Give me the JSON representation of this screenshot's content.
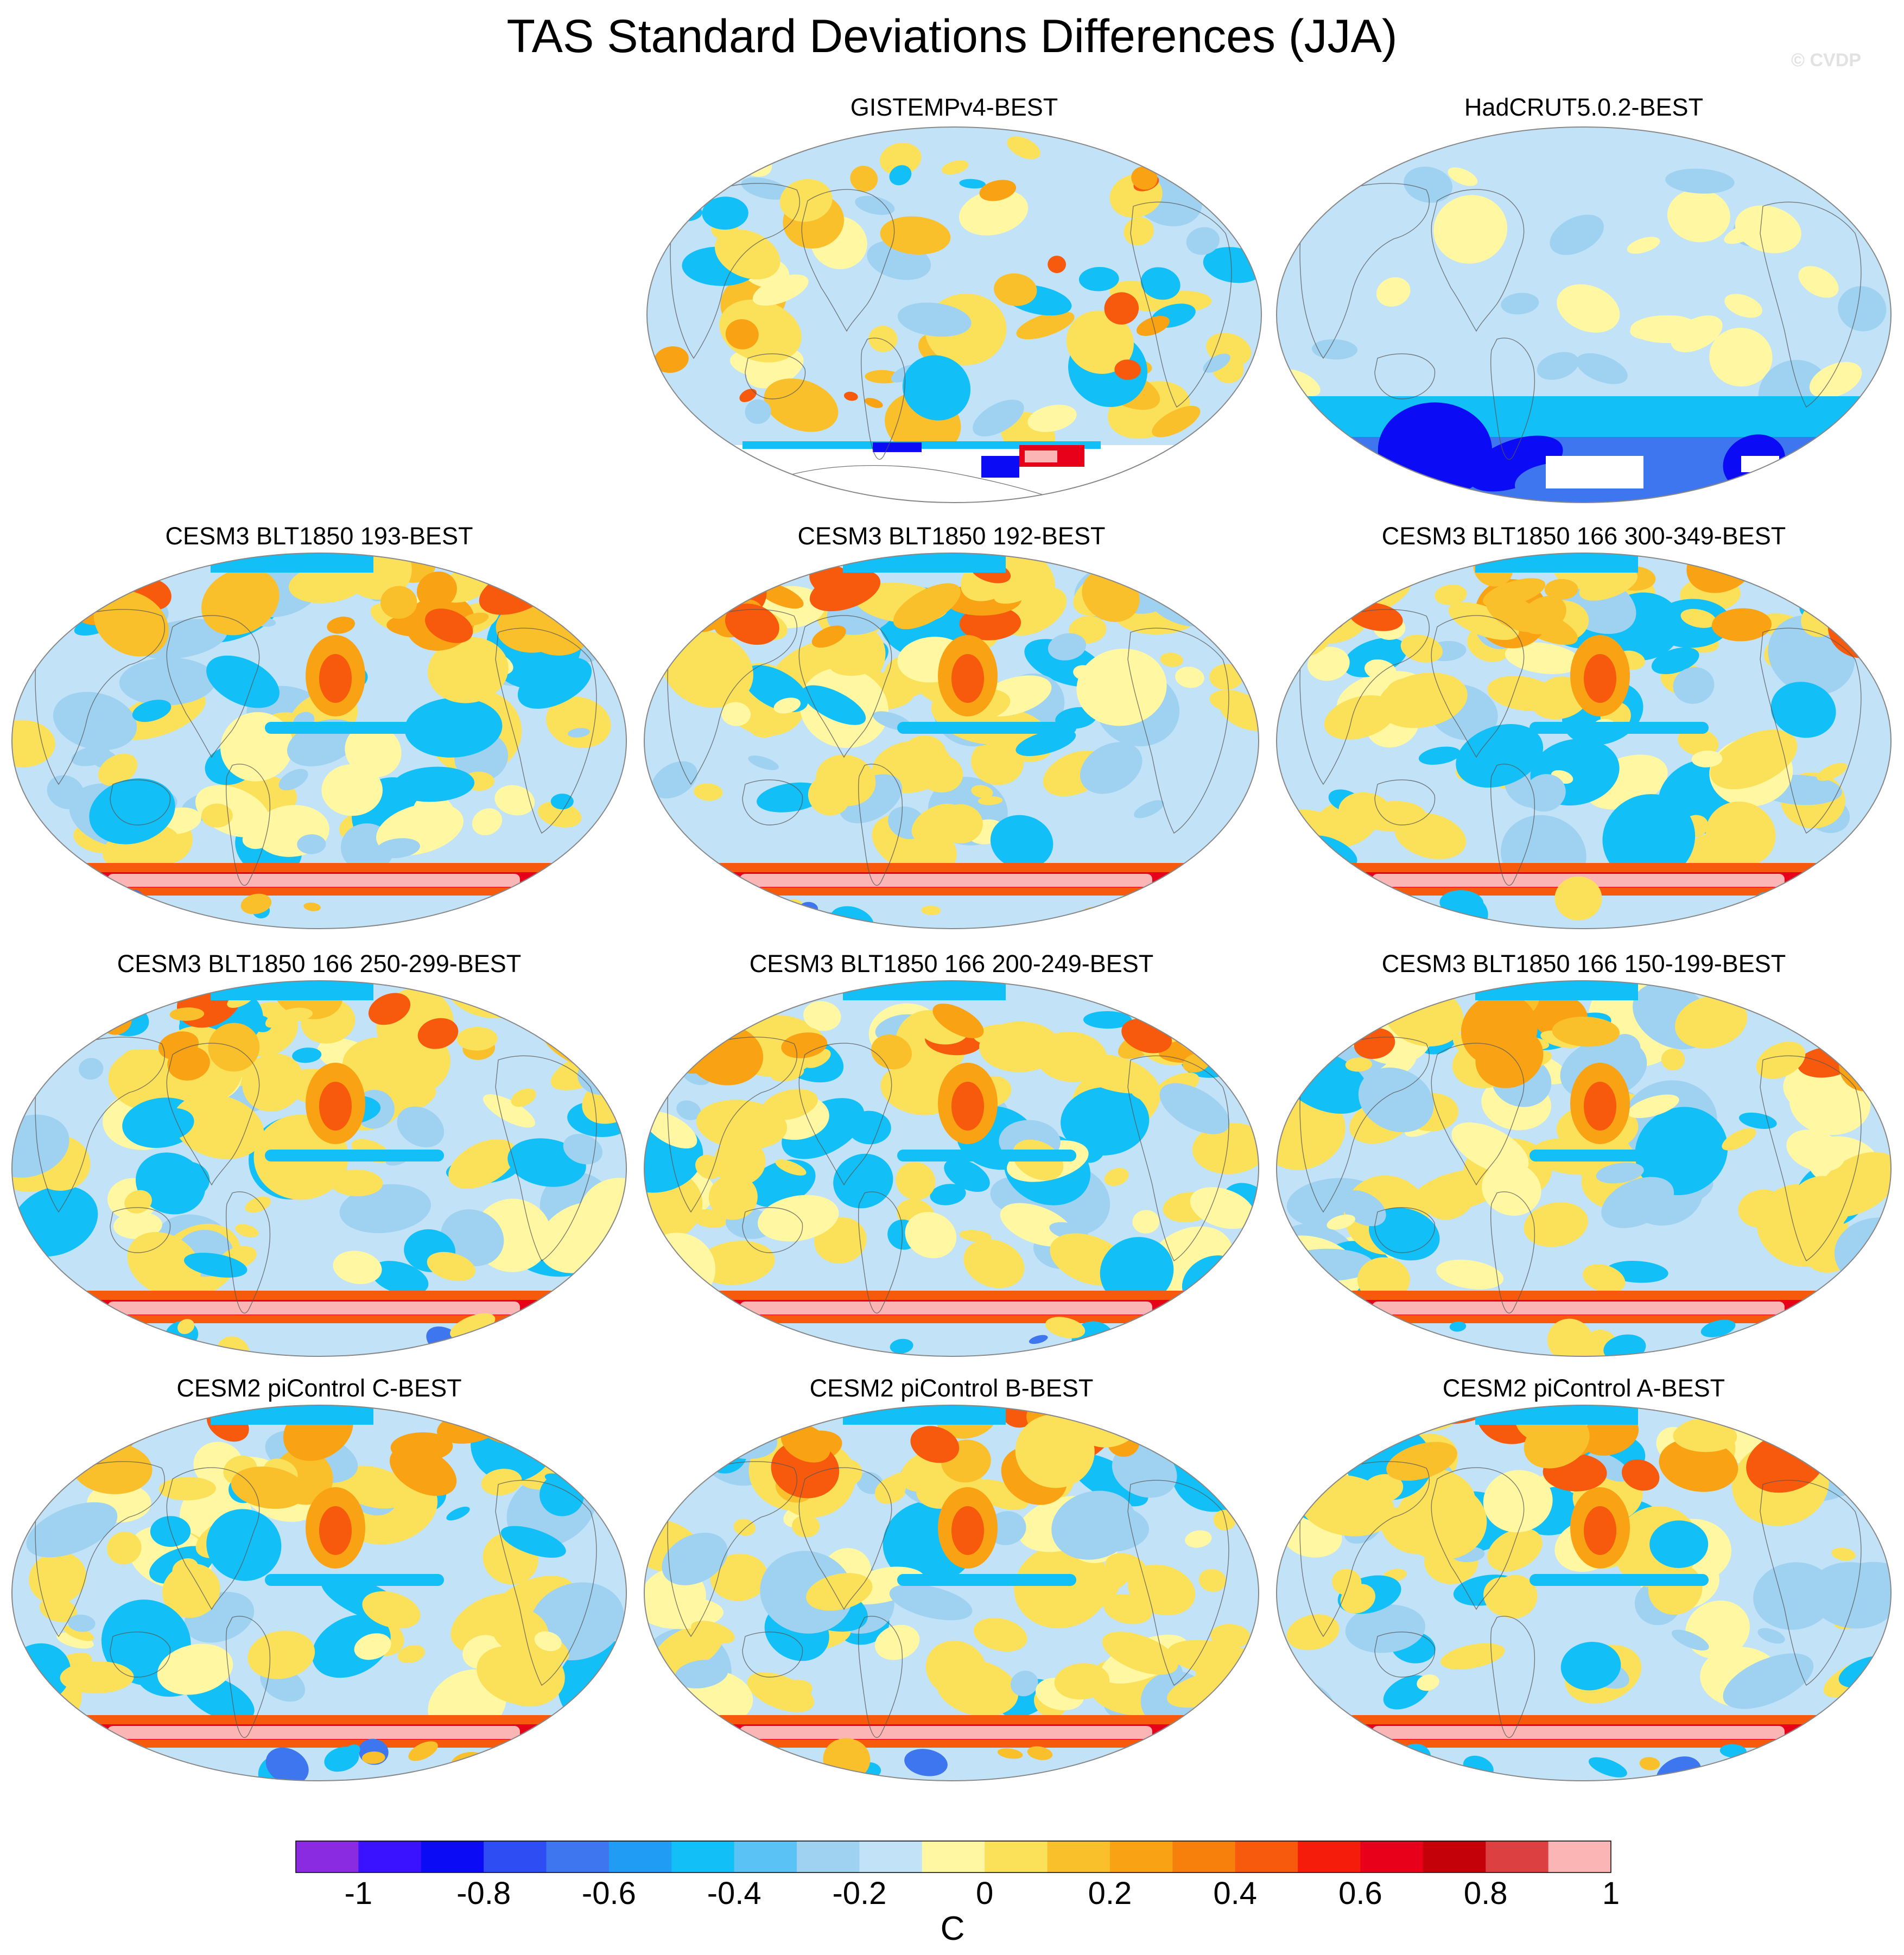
{
  "title": "TAS Standard Deviations Differences (JJA)",
  "watermark": "© CVDP",
  "panels": [
    {
      "title": "GISTEMPv4-BEST",
      "theme": "obs_gistemp"
    },
    {
      "title": "HadCRUT5.0.2-BEST",
      "theme": "obs_hadcrut"
    },
    {
      "title": "CESM3 BLT1850 193-BEST",
      "theme": "model"
    },
    {
      "title": "CESM3 BLT1850 192-BEST",
      "theme": "model"
    },
    {
      "title": "CESM3 BLT1850 166 300-349-BEST",
      "theme": "model"
    },
    {
      "title": "CESM3 BLT1850 166 250-299-BEST",
      "theme": "model"
    },
    {
      "title": "CESM3 BLT1850 166 200-249-BEST",
      "theme": "model"
    },
    {
      "title": "CESM3 BLT1850 166 150-199-BEST",
      "theme": "model"
    },
    {
      "title": "CESM2 piControl C-BEST",
      "theme": "model"
    },
    {
      "title": "CESM2 piControl B-BEST",
      "theme": "model"
    },
    {
      "title": "CESM2 piControl A-BEST",
      "theme": "model"
    }
  ],
  "colorbar": {
    "units": "C",
    "tick_labels": [
      "-1",
      "-0.8",
      "-0.6",
      "-0.4",
      "-0.2",
      "0",
      "0.2",
      "0.4",
      "0.6",
      "0.8",
      "1"
    ],
    "colors": [
      "#8a2be2",
      "#3a12ff",
      "#0b0bf5",
      "#2e4df2",
      "#3d76ee",
      "#209cf5",
      "#12bff6",
      "#5ac2f5",
      "#9fd2f1",
      "#c2e3f7",
      "#fff7a2",
      "#fbe05a",
      "#f9c02c",
      "#f8a214",
      "#f7800c",
      "#f75a0c",
      "#f61c0c",
      "#e8001a",
      "#c40009",
      "#dd4040",
      "#fbb5b5"
    ]
  }
}
